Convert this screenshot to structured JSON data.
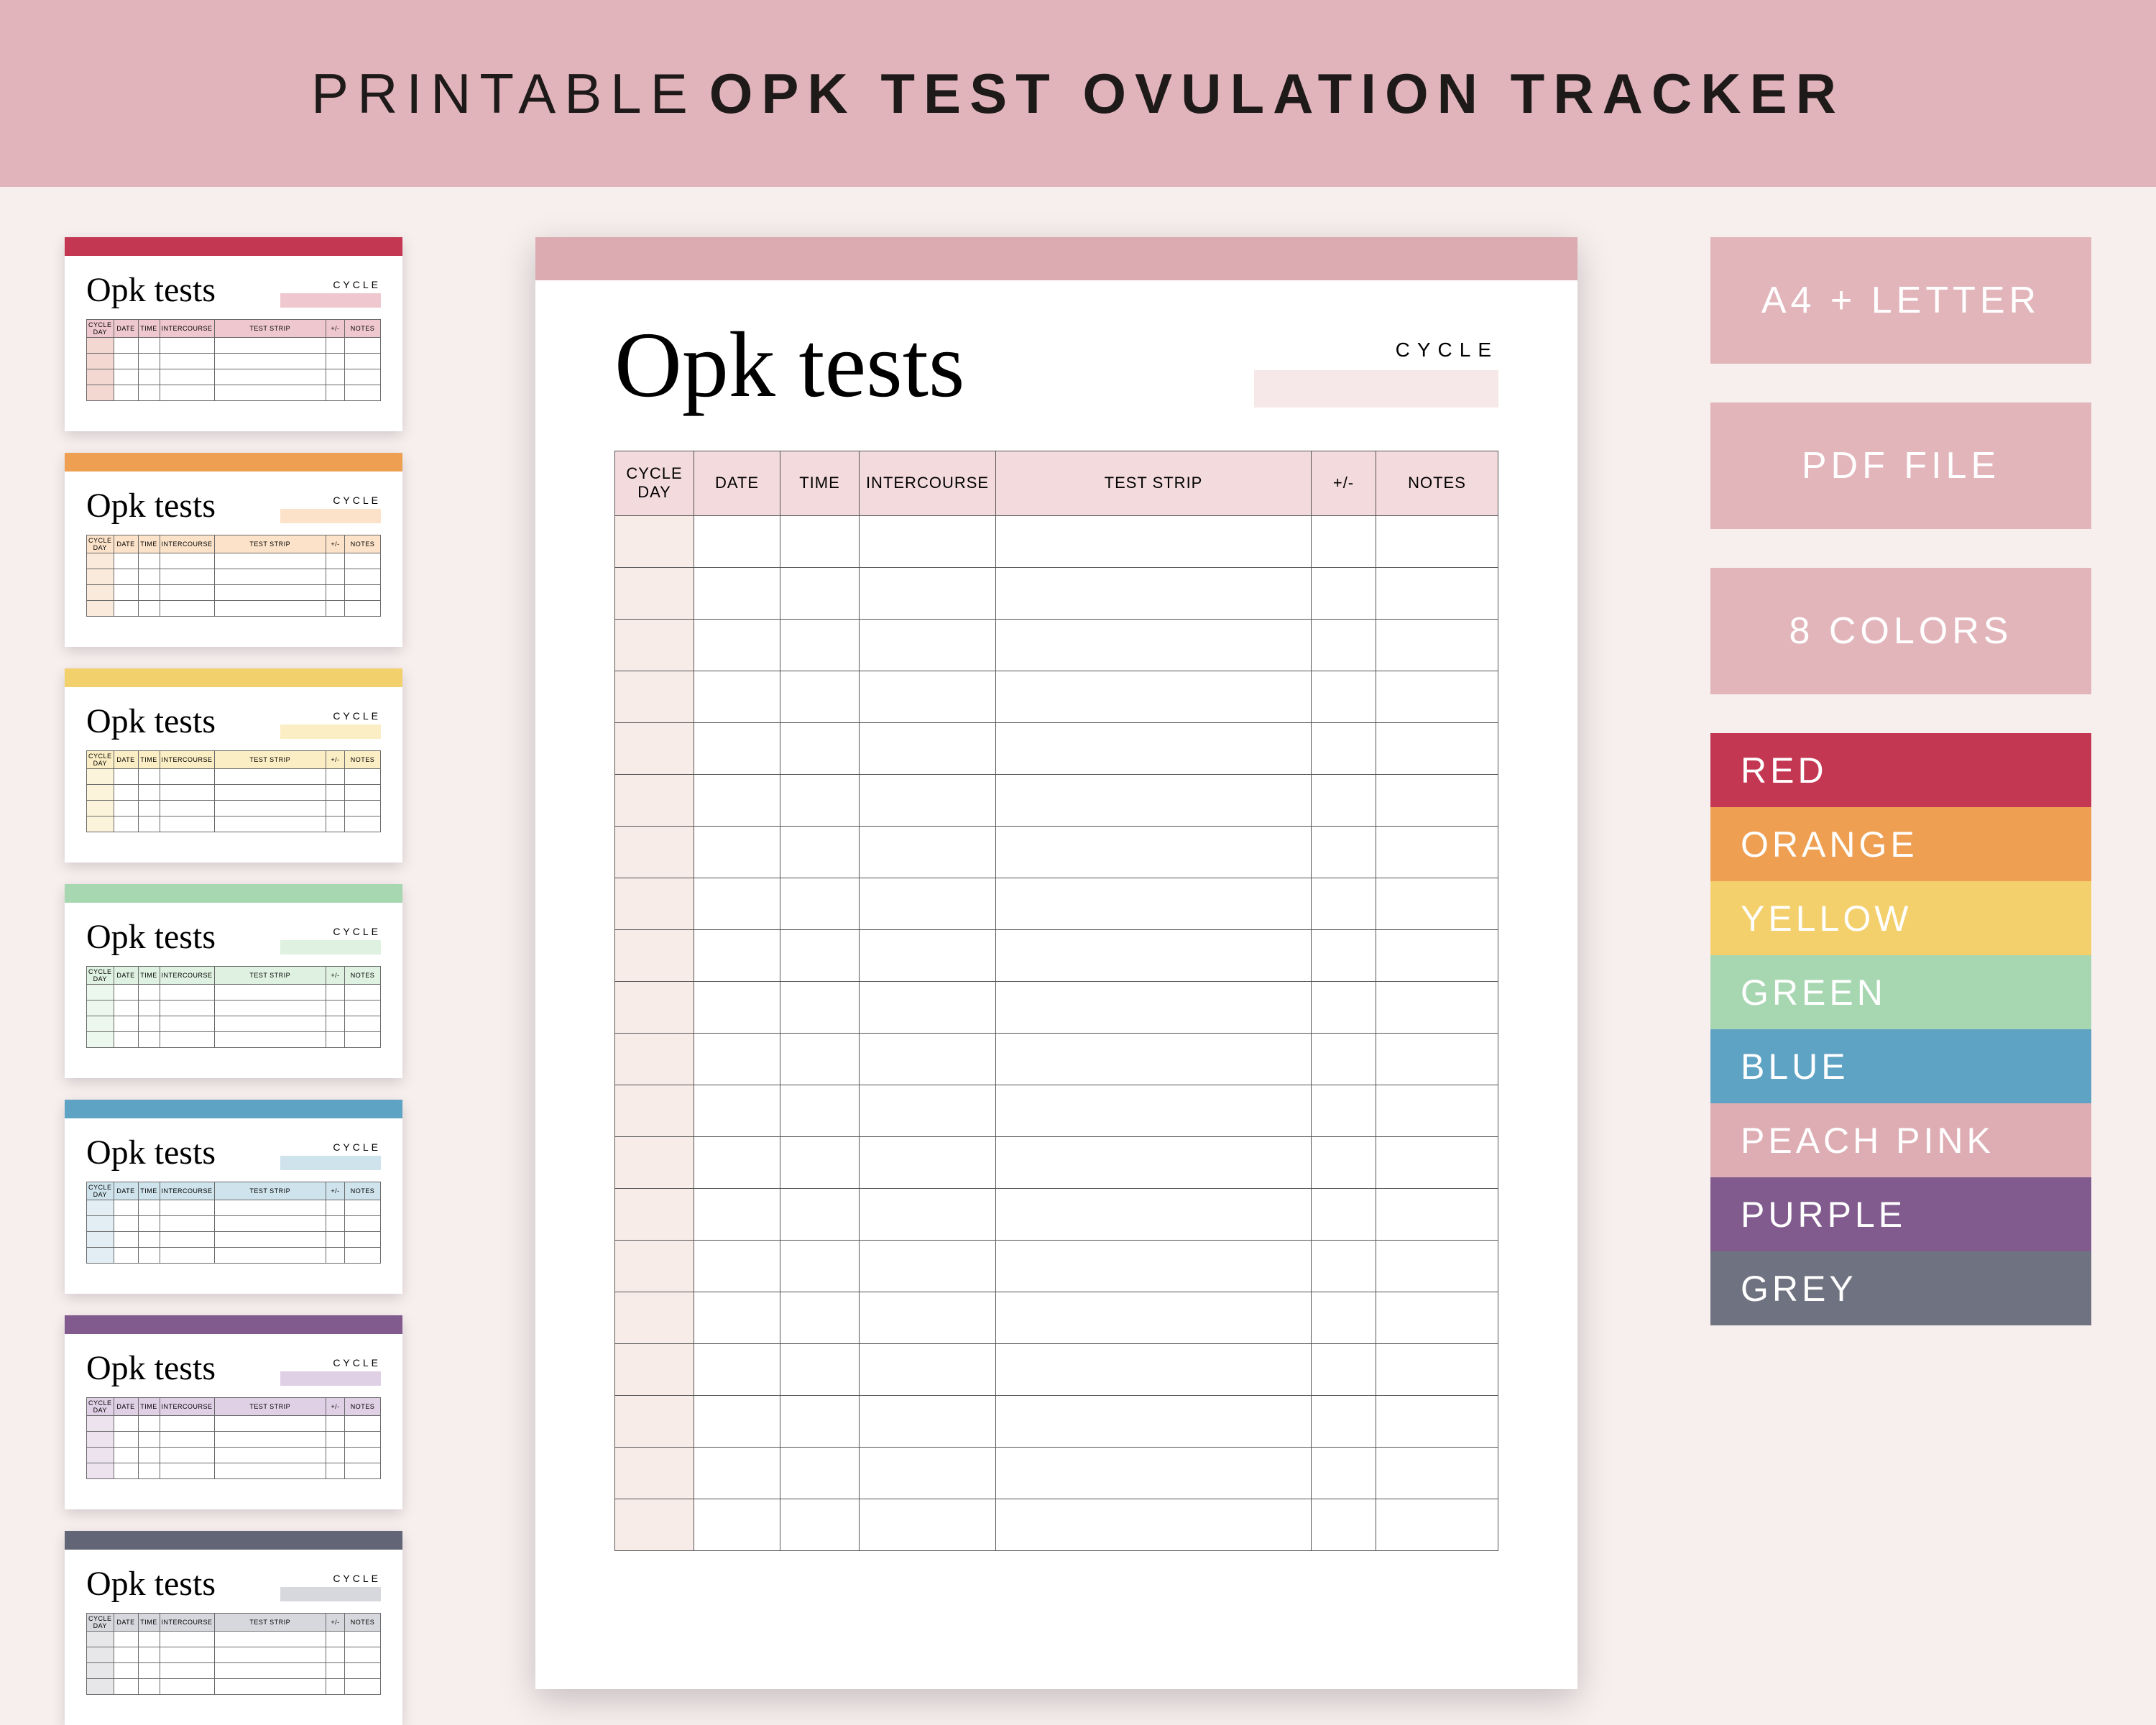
{
  "banner": {
    "light": "PRINTABLE",
    "bold": "OPK TEST OVULATION TRACKER"
  },
  "palette": {
    "background": "#f7eeee",
    "banner_bg": "#e1b4bb",
    "sheet_shadow": "rgba(0,0,0,0.20)"
  },
  "table": {
    "columns": [
      "CYCLE\nDAY",
      "DATE",
      "TIME",
      "INTERCOURSE",
      "TEST STRIP",
      "+/-",
      "NOTES"
    ],
    "row_count": 20,
    "thumb_row_count": 4
  },
  "main_sheet": {
    "title": "Opk tests",
    "cycle_label": "CYCLE",
    "accent": "#dbabb1",
    "header_tint": "#f3dadd",
    "firstcol_tint": "#f8ece8",
    "cycle_swatch": "#f6e7e9"
  },
  "thumbs": [
    {
      "accent": "#c43752",
      "tint": "#efc8cf",
      "firstcol": "#f3d8d2",
      "title": "Opk tests"
    },
    {
      "accent": "#ef9f51",
      "tint": "#fbe2c9",
      "firstcol": "#faeadb",
      "title": "Opk tests"
    },
    {
      "accent": "#f2d06c",
      "tint": "#fbeec4",
      "firstcol": "#fbf3da",
      "title": "Opk tests"
    },
    {
      "accent": "#a7d7b1",
      "tint": "#dff1e0",
      "firstcol": "#ecf7ed",
      "title": "Opk tests"
    },
    {
      "accent": "#5fa3c4",
      "tint": "#cfe3ec",
      "firstcol": "#e2eef3",
      "title": "Opk tests"
    },
    {
      "accent": "#815a8e",
      "tint": "#e0d0e6",
      "firstcol": "#ece3ef",
      "title": "Opk tests"
    },
    {
      "accent": "#626575",
      "tint": "#d7d8dd",
      "firstcol": "#e7e7ea",
      "title": "Opk tests"
    }
  ],
  "sidebar": {
    "pills": [
      "A4 + LETTER",
      "PDF FILE",
      "8 COLORS"
    ],
    "pill_bg": "#e2b5bb",
    "colors": [
      {
        "label": "RED",
        "bg": "#c43752"
      },
      {
        "label": "ORANGE",
        "bg": "#ef9f51"
      },
      {
        "label": "YELLOW",
        "bg": "#f3d06c"
      },
      {
        "label": "GREEN",
        "bg": "#a7d7b1"
      },
      {
        "label": "BLUE",
        "bg": "#5fa3c4"
      },
      {
        "label": "PEACH PINK",
        "bg": "#ddadb3"
      },
      {
        "label": "PURPLE",
        "bg": "#815a8e"
      },
      {
        "label": "GREY",
        "bg": "#6f7280"
      }
    ]
  }
}
